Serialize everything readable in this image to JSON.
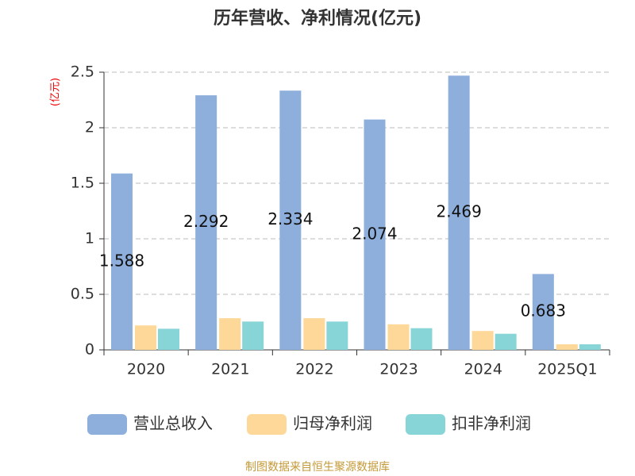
{
  "chart_data": {
    "type": "bar",
    "title": "历年营收、净利情况(亿元)",
    "y_label": "(亿元)",
    "footer": "制图数据来自恒生聚源数据库",
    "categories": [
      "2020",
      "2021",
      "2022",
      "2023",
      "2024",
      "2025Q1"
    ],
    "series": [
      {
        "name": "营业总收入",
        "color": "#8eaedb",
        "values": [
          1.588,
          2.292,
          2.334,
          2.074,
          2.469,
          0.683
        ],
        "labels": true
      },
      {
        "name": "归母净利润",
        "color": "#fdd899",
        "values": [
          0.22,
          0.285,
          0.285,
          0.23,
          0.17,
          0.05
        ]
      },
      {
        "name": "扣非净利润",
        "color": "#88d5d8",
        "values": [
          0.19,
          0.255,
          0.255,
          0.195,
          0.145,
          0.05
        ]
      }
    ],
    "ylim": [
      0,
      2.5
    ],
    "yticks": [
      0,
      0.5,
      1,
      1.5,
      2,
      2.5
    ],
    "grid": true
  }
}
